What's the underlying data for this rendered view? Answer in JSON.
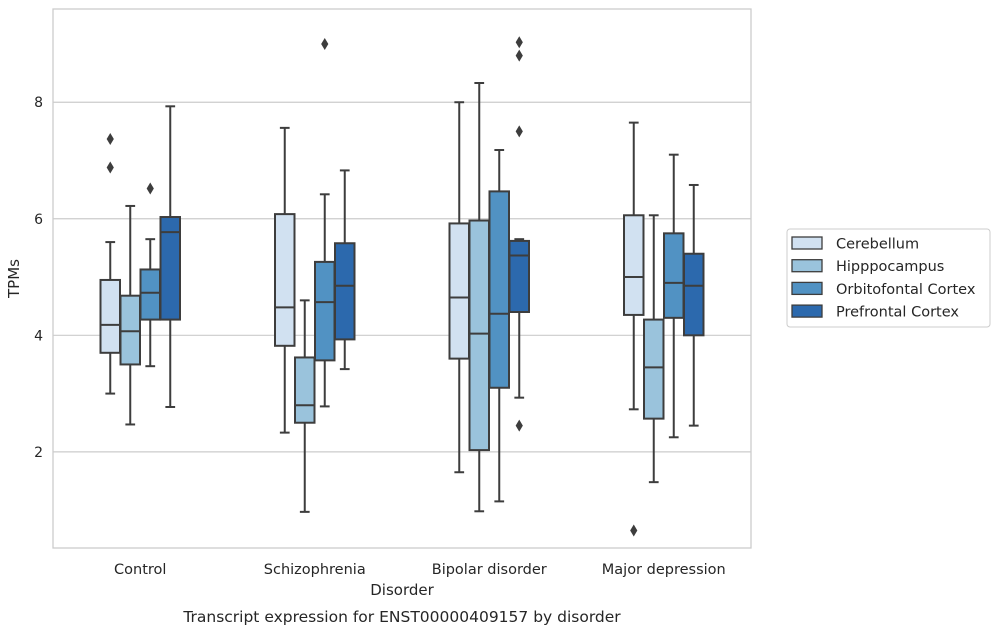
{
  "chart_data": {
    "type": "box",
    "caption": "Transcript expression for ENST00000409157 by disorder",
    "xlabel": "Disorder",
    "ylabel": "TPMs",
    "ylim": [
      0.35,
      9.6
    ],
    "yticks": [
      2,
      4,
      6,
      8
    ],
    "grid": true,
    "legend_position": "right",
    "categories": [
      "Control",
      "Schizophrenia",
      "Bipolar disorder",
      "Major depression"
    ],
    "series": [
      {
        "name": "Cerebellum",
        "color": "#d1e1f1",
        "boxes": [
          {
            "whislo": 3.0,
            "q1": 3.7,
            "med": 4.18,
            "q3": 4.95,
            "whishi": 5.6,
            "fliers": [
              6.88,
              7.37
            ]
          },
          {
            "whislo": 2.33,
            "q1": 3.82,
            "med": 4.48,
            "q3": 6.08,
            "whishi": 7.56,
            "fliers": []
          },
          {
            "whislo": 1.65,
            "q1": 3.6,
            "med": 4.65,
            "q3": 5.92,
            "whishi": 8.0,
            "fliers": []
          },
          {
            "whislo": 2.73,
            "q1": 4.35,
            "med": 5.0,
            "q3": 6.06,
            "whishi": 7.65,
            "fliers": [
              0.65
            ]
          }
        ]
      },
      {
        "name": "Hipppocampus",
        "color": "#9ac3dc",
        "boxes": [
          {
            "whislo": 2.47,
            "q1": 3.5,
            "med": 4.07,
            "q3": 4.68,
            "whishi": 6.22,
            "fliers": []
          },
          {
            "whislo": 0.97,
            "q1": 2.5,
            "med": 2.8,
            "q3": 3.62,
            "whishi": 4.6,
            "fliers": []
          },
          {
            "whislo": 0.98,
            "q1": 2.03,
            "med": 4.03,
            "q3": 5.97,
            "whishi": 8.33,
            "fliers": []
          },
          {
            "whislo": 1.48,
            "q1": 2.57,
            "med": 3.45,
            "q3": 4.27,
            "whishi": 6.06,
            "fliers": []
          }
        ]
      },
      {
        "name": "Orbitofontal Cortex",
        "color": "#5192c3",
        "boxes": [
          {
            "whislo": 3.47,
            "q1": 4.27,
            "med": 4.73,
            "q3": 5.13,
            "whishi": 5.65,
            "fliers": [
              6.52
            ]
          },
          {
            "whislo": 2.78,
            "q1": 3.57,
            "med": 4.57,
            "q3": 5.26,
            "whishi": 6.42,
            "fliers": [
              9.0
            ]
          },
          {
            "whislo": 1.15,
            "q1": 3.1,
            "med": 4.37,
            "q3": 6.47,
            "whishi": 7.18,
            "fliers": []
          },
          {
            "whislo": 2.25,
            "q1": 4.3,
            "med": 4.9,
            "q3": 5.75,
            "whishi": 7.1,
            "fliers": []
          }
        ]
      },
      {
        "name": "Prefrontal Cortex",
        "color": "#2c69ad",
        "boxes": [
          {
            "whislo": 2.77,
            "q1": 4.27,
            "med": 5.77,
            "q3": 6.03,
            "whishi": 7.93,
            "fliers": []
          },
          {
            "whislo": 3.42,
            "q1": 3.93,
            "med": 4.85,
            "q3": 5.58,
            "whishi": 6.83,
            "fliers": []
          },
          {
            "whislo": 2.93,
            "q1": 4.4,
            "med": 5.37,
            "q3": 5.62,
            "whishi": 5.65,
            "fliers": [
              2.45,
              7.5,
              8.8,
              9.03
            ]
          },
          {
            "whislo": 2.45,
            "q1": 4.0,
            "med": 4.85,
            "q3": 5.4,
            "whishi": 6.58,
            "fliers": []
          }
        ]
      }
    ]
  }
}
